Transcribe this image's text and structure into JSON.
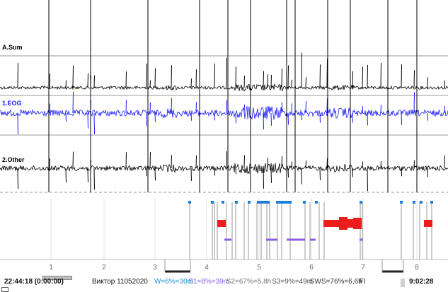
{
  "channels": [
    {
      "label": "A.Sum",
      "color": "#000000"
    },
    {
      "label": "1.EOG",
      "color": "#1a1aff"
    },
    {
      "label": "2.Other",
      "color": "#000000"
    }
  ],
  "hypnogram": {
    "hour_ticks": [
      "1",
      "2",
      "3",
      "4",
      "5",
      "6",
      "7",
      "8"
    ],
    "wake_color": "#1f7fd8",
    "s1_color": "#8b5fe0",
    "rem_color": "#ee1c1c",
    "sws_color": "#222222"
  },
  "footer": {
    "start_time": "22:44:18 (0:00:00)",
    "recording_name": "Виктор 11052020",
    "stats": [
      {
        "text": "W=6%=30m",
        "color": "#1c8fd8"
      },
      {
        "text": "S1=8%=39m",
        "color": "#8b5fe0"
      },
      {
        "text": "S2=67%=5,8h",
        "color": "#777777"
      },
      {
        "text": "S3=9%=49m",
        "color": "#555555"
      },
      {
        "text": "SWS=76%=6,6h",
        "color": "#333333"
      },
      {
        "text": "Fl",
        "color": "#111111"
      }
    ],
    "end_time": "9:02:28"
  }
}
